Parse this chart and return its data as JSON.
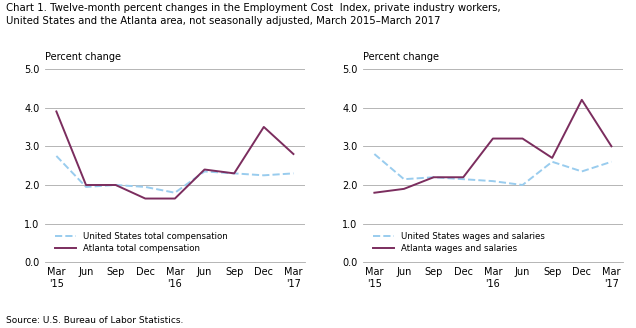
{
  "title_line1": "Chart 1. Twelve-month percent changes in the Employment Cost  Index, private industry workers,",
  "title_line2": "United States and the Atlanta area, not seasonally adjusted, March 2015–March 2017",
  "source": "Source: U.S. Bureau of Labor Statistics.",
  "ylabel": "Percent change",
  "ylim": [
    0.0,
    5.0
  ],
  "yticks": [
    0.0,
    1.0,
    2.0,
    3.0,
    4.0,
    5.0
  ],
  "left_us": [
    2.75,
    1.95,
    2.0,
    1.95,
    1.8,
    2.35,
    2.3,
    2.25,
    2.3
  ],
  "left_atlanta": [
    3.9,
    2.0,
    2.0,
    1.65,
    1.65,
    2.4,
    2.3,
    3.5,
    2.8
  ],
  "right_us": [
    2.8,
    2.15,
    2.2,
    2.15,
    2.1,
    2.0,
    2.6,
    2.35,
    2.6
  ],
  "right_atlanta": [
    1.8,
    1.9,
    2.2,
    2.2,
    3.2,
    3.2,
    2.7,
    4.2,
    3.0
  ],
  "us_color": "#99CCEE",
  "atlanta_color": "#7B2D5E",
  "us_linestyle": "--",
  "atlanta_linestyle": "-",
  "legend1_us": "United States total compensation",
  "legend1_atlanta": "Atlanta total compensation",
  "legend2_us": "United States wages and salaries",
  "legend2_atlanta": "Atlanta wages and salaries",
  "linewidth": 1.4
}
